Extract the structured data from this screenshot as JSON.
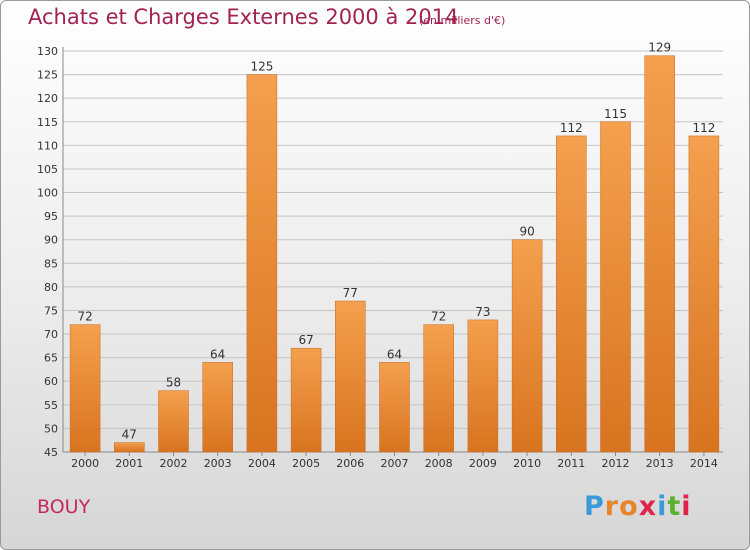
{
  "header": {
    "title": "Achats et Charges Externes 2000 à 2014",
    "unit": "(en milliers d'€)"
  },
  "footer": {
    "place": "BOUY",
    "logo": "Proxiti"
  },
  "colors": {
    "title": "#a32350",
    "bar_light": "#f4a04e",
    "bar_dark": "#d87420",
    "logo_letters": [
      "#3a9ad9",
      "#e8842a",
      "#e8842a",
      "#e0234a",
      "#3a9ad9",
      "#5cb030",
      "#e0234a"
    ]
  },
  "chart_data": {
    "type": "bar",
    "title": "Achats et Charges Externes 2000 à 2014",
    "subtitle": "(en milliers d'€)",
    "categories": [
      "2000",
      "2001",
      "2002",
      "2003",
      "2004",
      "2005",
      "2006",
      "2007",
      "2008",
      "2009",
      "2010",
      "2011",
      "2012",
      "2013",
      "2014"
    ],
    "values": [
      72,
      47,
      58,
      64,
      125,
      67,
      77,
      64,
      72,
      73,
      90,
      112,
      115,
      129,
      112
    ],
    "ylim": [
      45,
      130
    ],
    "yticks": [
      45,
      50,
      55,
      60,
      65,
      70,
      75,
      80,
      85,
      90,
      95,
      100,
      105,
      110,
      115,
      120,
      125,
      130
    ],
    "grid": true,
    "data_labels": true
  }
}
